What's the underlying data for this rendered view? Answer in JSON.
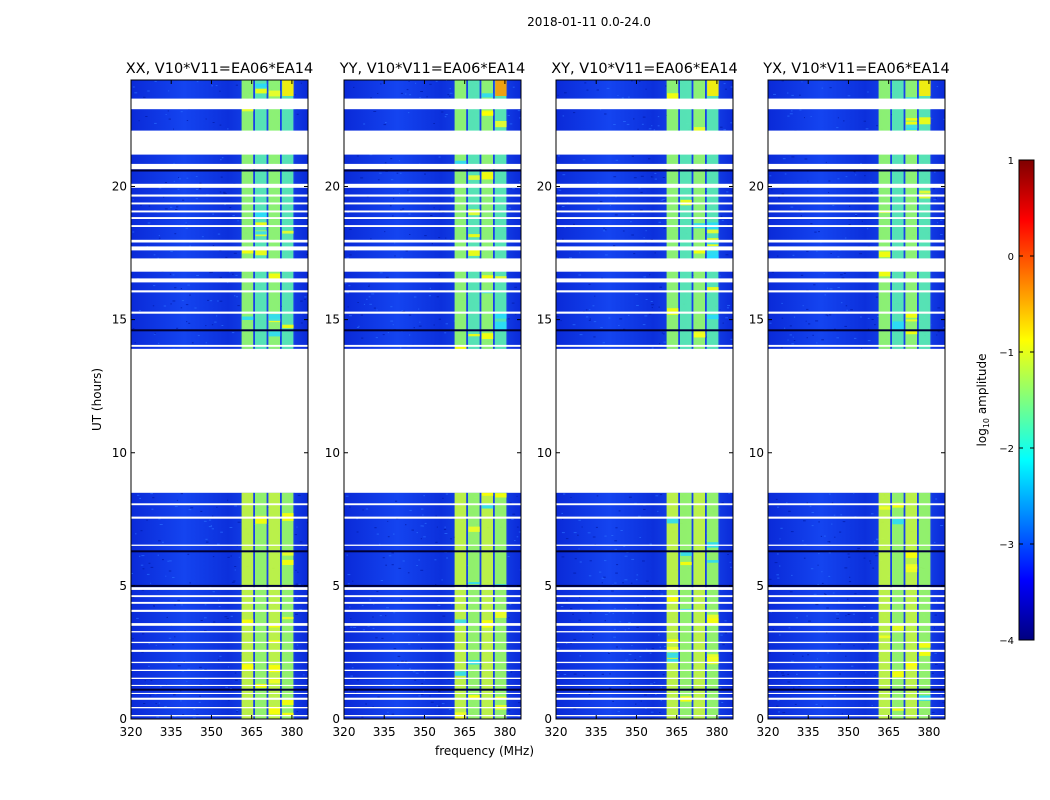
{
  "figure": {
    "suptitle": "2018-01-11 0.0-24.0"
  },
  "colorbar": {
    "label": "log10 amplitude",
    "label_prefix": "log",
    "label_sub": "10",
    "label_suffix": " amplitude",
    "range": [
      -4,
      1
    ],
    "ticks": [
      1,
      0,
      -1,
      -2,
      -3,
      -4
    ],
    "tick_labels": [
      "1",
      "0",
      "−1",
      "−2",
      "−3",
      "−4"
    ],
    "colormap": "jet",
    "colormap_stops": [
      "#00007f",
      "#0000ff",
      "#007fff",
      "#00ffff",
      "#7fff7f",
      "#ffff00",
      "#ff7f00",
      "#ff0000",
      "#7f0000"
    ]
  },
  "chart_data": [
    {
      "type": "heatmap",
      "title": "XX, V10*V11=EA06*EA14",
      "xlabel": "",
      "ylabel": "UT (hours)",
      "xlim": [
        320,
        386
      ],
      "ylim": [
        0,
        24
      ],
      "x_ticks": [
        320,
        335,
        350,
        365,
        380
      ],
      "y_ticks": [
        0,
        5,
        10,
        15,
        20
      ],
      "data_segments_ut_hours": [
        [
          0.0,
          8.5
        ],
        [
          13.9,
          24.0
        ]
      ],
      "no_data_range_ut_hours": [
        8.5,
        13.9
      ],
      "bright_band_mhz": [
        361,
        381
      ]
    },
    {
      "type": "heatmap",
      "title": "YY, V10*V11=EA06*EA14",
      "xlabel": "frequency (MHz)",
      "ylabel": "",
      "xlim": [
        320,
        386
      ],
      "ylim": [
        0,
        24
      ],
      "x_ticks": [
        320,
        335,
        350,
        365,
        380
      ],
      "y_ticks": [
        0,
        5,
        10,
        15,
        20
      ],
      "data_segments_ut_hours": [
        [
          0.0,
          8.5
        ],
        [
          13.9,
          24.0
        ]
      ],
      "no_data_range_ut_hours": [
        8.5,
        13.9
      ],
      "bright_band_mhz": [
        361,
        381
      ]
    },
    {
      "type": "heatmap",
      "title": "XY, V10*V11=EA06*EA14",
      "xlabel": "",
      "ylabel": "",
      "xlim": [
        320,
        386
      ],
      "ylim": [
        0,
        24
      ],
      "x_ticks": [
        320,
        335,
        350,
        365,
        380
      ],
      "y_ticks": [
        0,
        5,
        10,
        15,
        20
      ],
      "data_segments_ut_hours": [
        [
          0.0,
          8.5
        ],
        [
          13.9,
          24.0
        ]
      ],
      "no_data_range_ut_hours": [
        8.5,
        13.9
      ],
      "bright_band_mhz": [
        361,
        381
      ]
    },
    {
      "type": "heatmap",
      "title": "YX, V10*V11=EA06*EA14",
      "xlabel": "",
      "ylabel": "",
      "xlim": [
        320,
        386
      ],
      "ylim": [
        0,
        24
      ],
      "x_ticks": [
        320,
        335,
        350,
        365,
        380
      ],
      "y_ticks": [
        0,
        5,
        10,
        15,
        20
      ],
      "data_segments_ut_hours": [
        [
          0.0,
          8.5
        ],
        [
          13.9,
          24.0
        ]
      ],
      "no_data_range_ut_hours": [
        8.5,
        13.9
      ],
      "bright_band_mhz": [
        361,
        381
      ]
    }
  ]
}
